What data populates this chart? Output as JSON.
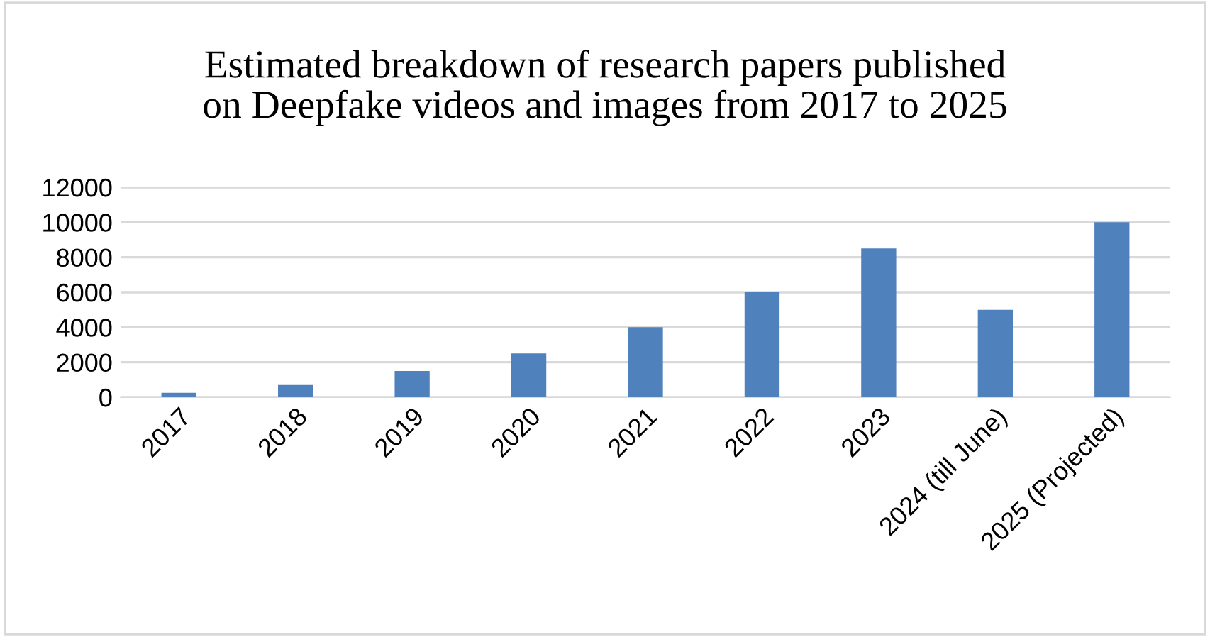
{
  "chart_data": {
    "type": "bar",
    "title": "Estimated breakdown of research papers published\non Deepfake videos and images from 2017 to 2025",
    "categories": [
      "2017",
      "2018",
      "2019",
      "2020",
      "2021",
      "2022",
      "2023",
      "2024 (till June)",
      "2025 (Projected)"
    ],
    "values": [
      250,
      700,
      1500,
      2500,
      4000,
      6000,
      8500,
      5000,
      10000
    ],
    "color": "#4f81bd",
    "ylim": [
      0,
      12000
    ],
    "yticks": [
      0,
      2000,
      4000,
      6000,
      8000,
      10000,
      12000
    ],
    "grid": "y"
  }
}
